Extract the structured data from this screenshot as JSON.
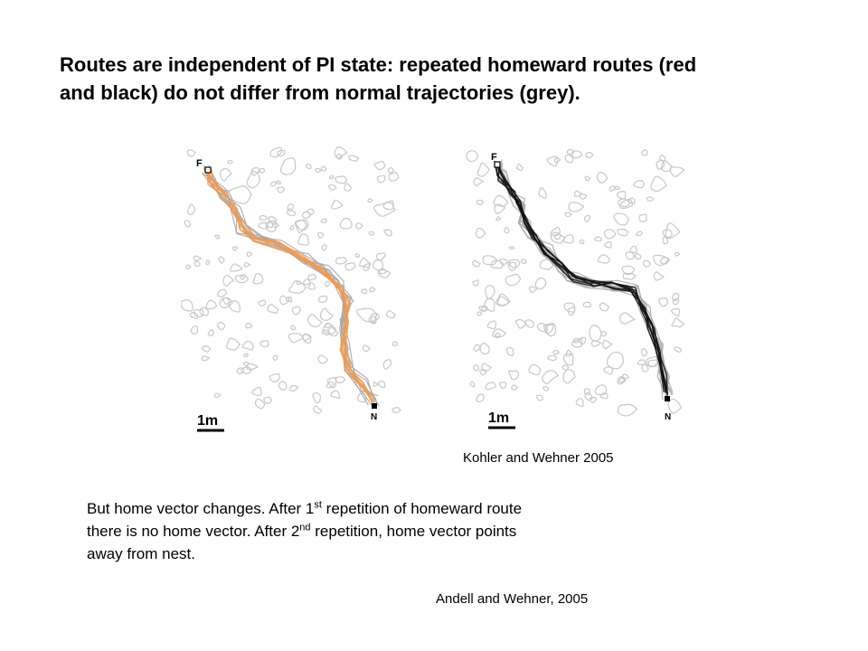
{
  "slide": {
    "title_line_1": "Routes are independent of PI state: repeated homeward routes (red",
    "title_line_2": "and black) do not differ from normal trajectories (grey)."
  },
  "figure_left": {
    "feeder_label": "F",
    "nest_label": "N",
    "scale_label": "1m",
    "route_color": "#f09a50",
    "trajectory_color": "#a8a8a8"
  },
  "figure_right": {
    "feeder_label": "F",
    "nest_label": "N",
    "scale_label": "1m",
    "route_color": "#111111",
    "trajectory_color": "#a8a8a8"
  },
  "citations": {
    "first": "Kohler and Wehner 2005",
    "second": "Andell and Wehner, 2005"
  },
  "body": {
    "line1_a": "But home vector changes. After 1",
    "line1_sup": "st",
    "line1_b": " repetition of homeward route",
    "line2_a": "there is no home vector. After 2",
    "line2_sup": "nd",
    "line2_b": " repetition, home vector points",
    "line3": "away from nest."
  }
}
